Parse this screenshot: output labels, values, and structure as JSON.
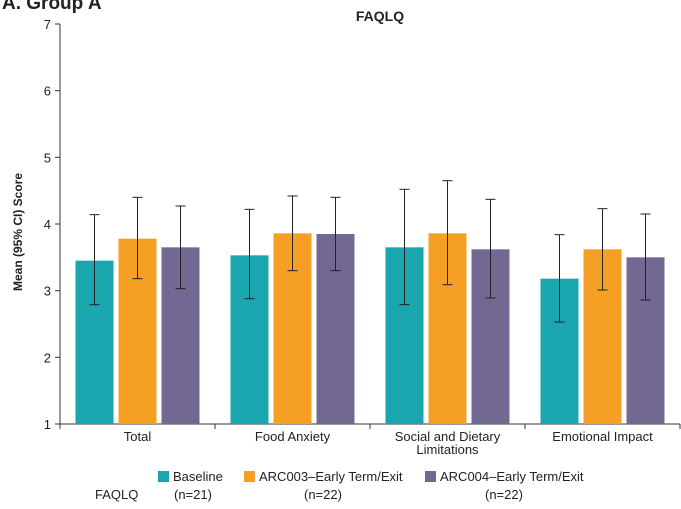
{
  "panel_label": "A. Group A",
  "legend_row_label": "FAQLQ",
  "chart_data": {
    "type": "bar",
    "title": "FAQLQ",
    "xlabel": "",
    "ylabel": "Mean (95% CI) Score",
    "ylim": [
      1,
      7
    ],
    "yticks": [
      "1",
      "2",
      "3",
      "4",
      "5",
      "6",
      "7"
    ],
    "categories": [
      "Total",
      "Food Anxiety",
      "Social and Dietary Limitations",
      "Emotional Impact"
    ],
    "category_label_lines": [
      [
        "Total"
      ],
      [
        "Food Anxiety"
      ],
      [
        "Social and Dietary",
        "Limitations"
      ],
      [
        "Emotional Impact"
      ]
    ],
    "error_bars": "95% CI",
    "series": [
      {
        "name": "Baseline",
        "n_label": "(n=21)",
        "color": "#19a6ae",
        "values": [
          3.45,
          3.53,
          3.65,
          3.18
        ],
        "ci_low": [
          2.79,
          2.88,
          2.79,
          2.53
        ],
        "ci_high": [
          4.14,
          4.22,
          4.52,
          3.84
        ]
      },
      {
        "name": "ARC003–Early Term/Exit",
        "n_label": "(n=22)",
        "color": "#f5a025",
        "values": [
          3.78,
          3.86,
          3.86,
          3.62
        ],
        "ci_low": [
          3.18,
          3.3,
          3.09,
          3.01
        ],
        "ci_high": [
          4.4,
          4.42,
          4.65,
          4.23
        ]
      },
      {
        "name": "ARC004–Early Term/Exit",
        "n_label": "(n=22)",
        "color": "#736892",
        "values": [
          3.65,
          3.85,
          3.62,
          3.5
        ],
        "ci_low": [
          3.03,
          3.3,
          2.89,
          2.86
        ],
        "ci_high": [
          4.27,
          4.4,
          4.37,
          4.15
        ]
      }
    ],
    "legend_position": "bottom",
    "grid": false
  }
}
